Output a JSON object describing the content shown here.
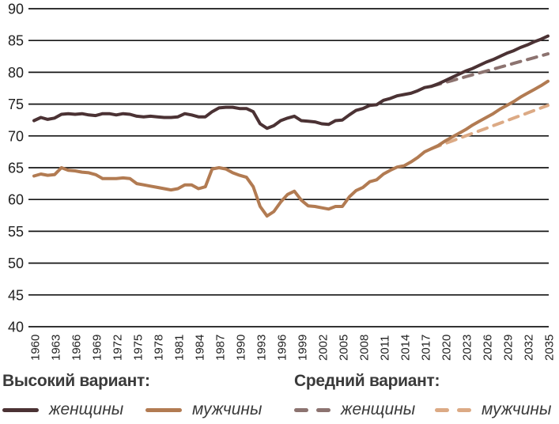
{
  "chart_data": {
    "type": "line",
    "title": "",
    "xlabel": "",
    "ylabel": "",
    "xlim": [
      1960,
      2035
    ],
    "ylim": [
      40,
      90
    ],
    "grid": "horizontal",
    "y_ticks": [
      90,
      85,
      80,
      75,
      70,
      65,
      60,
      55,
      50,
      45,
      40
    ],
    "x_ticks": [
      1960,
      1963,
      1966,
      1969,
      1972,
      1975,
      1978,
      1981,
      1984,
      1987,
      1990,
      1993,
      1996,
      1999,
      2002,
      2005,
      2008,
      2011,
      2014,
      2017,
      2020,
      2023,
      2026,
      2029,
      2032,
      2035
    ],
    "series": [
      {
        "id": "women-high",
        "name": "Высокий вариант — женщины",
        "style": "solid",
        "color": "#4b3234",
        "start_year": 1960,
        "values": [
          72.4,
          72.9,
          72.6,
          72.8,
          73.4,
          73.5,
          73.4,
          73.5,
          73.3,
          73.2,
          73.5,
          73.5,
          73.3,
          73.5,
          73.4,
          73.1,
          73.0,
          73.1,
          73.0,
          72.9,
          72.9,
          73.0,
          73.5,
          73.3,
          73.0,
          73.0,
          73.8,
          74.4,
          74.5,
          74.5,
          74.3,
          74.3,
          73.8,
          71.9,
          71.2,
          71.6,
          72.4,
          72.8,
          73.1,
          72.4,
          72.3,
          72.2,
          71.9,
          71.8,
          72.4,
          72.5,
          73.3,
          74.0,
          74.3,
          74.8,
          74.9,
          75.6,
          75.9,
          76.3,
          76.5,
          76.7,
          77.1,
          77.6,
          77.8,
          78.2,
          78.7,
          79.2,
          79.7,
          80.2,
          80.6,
          81.1,
          81.6,
          82.0,
          82.5,
          83.0,
          83.4,
          83.9,
          84.3,
          84.8,
          85.2,
          85.7
        ]
      },
      {
        "id": "men-high",
        "name": "Высокий вариант — мужчины",
        "style": "solid",
        "color": "#b27b52",
        "start_year": 1960,
        "values": [
          63.7,
          64.0,
          63.8,
          63.9,
          65.0,
          64.6,
          64.5,
          64.3,
          64.2,
          63.9,
          63.3,
          63.3,
          63.3,
          63.4,
          63.3,
          62.5,
          62.3,
          62.1,
          61.9,
          61.7,
          61.5,
          61.7,
          62.3,
          62.3,
          61.7,
          62.0,
          64.8,
          65.0,
          64.8,
          64.2,
          63.8,
          63.5,
          62.0,
          58.9,
          57.4,
          58.1,
          59.6,
          60.8,
          61.3,
          59.9,
          59.0,
          58.9,
          58.7,
          58.5,
          58.9,
          58.9,
          60.4,
          61.4,
          61.9,
          62.8,
          63.1,
          64.0,
          64.6,
          65.1,
          65.3,
          65.9,
          66.6,
          67.5,
          68.0,
          68.5,
          69.2,
          69.8,
          70.4,
          71.0,
          71.7,
          72.3,
          72.9,
          73.5,
          74.2,
          74.8,
          75.4,
          76.1,
          76.7,
          77.3,
          77.9,
          78.6
        ]
      },
      {
        "id": "women-medium",
        "name": "Средний вариант — женщины",
        "style": "dashed",
        "color": "#8c7370",
        "start_year": 2018,
        "values": [
          77.8,
          78.1,
          78.4,
          78.7,
          79.0,
          79.3,
          79.6,
          79.9,
          80.2,
          80.5,
          80.8,
          81.1,
          81.4,
          81.7,
          82.0,
          82.3,
          82.6,
          82.9
        ]
      },
      {
        "id": "men-medium",
        "name": "Средний вариант — мужчины",
        "style": "dashed",
        "color": "#dcaa85",
        "start_year": 2018,
        "values": [
          68.0,
          68.4,
          68.8,
          69.2,
          69.6,
          70.0,
          70.4,
          70.8,
          71.2,
          71.6,
          72.0,
          72.4,
          72.8,
          73.2,
          73.6,
          74.0,
          74.4,
          74.8
        ]
      }
    ]
  },
  "legend": {
    "high": {
      "title": "Высокий вариант:",
      "items": [
        {
          "label": "женщины"
        },
        {
          "label": "мужчины"
        }
      ]
    },
    "medium": {
      "title": "Средний вариант:",
      "items": [
        {
          "label": "женщины"
        },
        {
          "label": "мужчины"
        }
      ]
    }
  },
  "colors": {
    "gridline": "#161616",
    "tick_text": "#1f1f1f",
    "legend_text": "#3a3a3a",
    "background": "#ffffff"
  }
}
